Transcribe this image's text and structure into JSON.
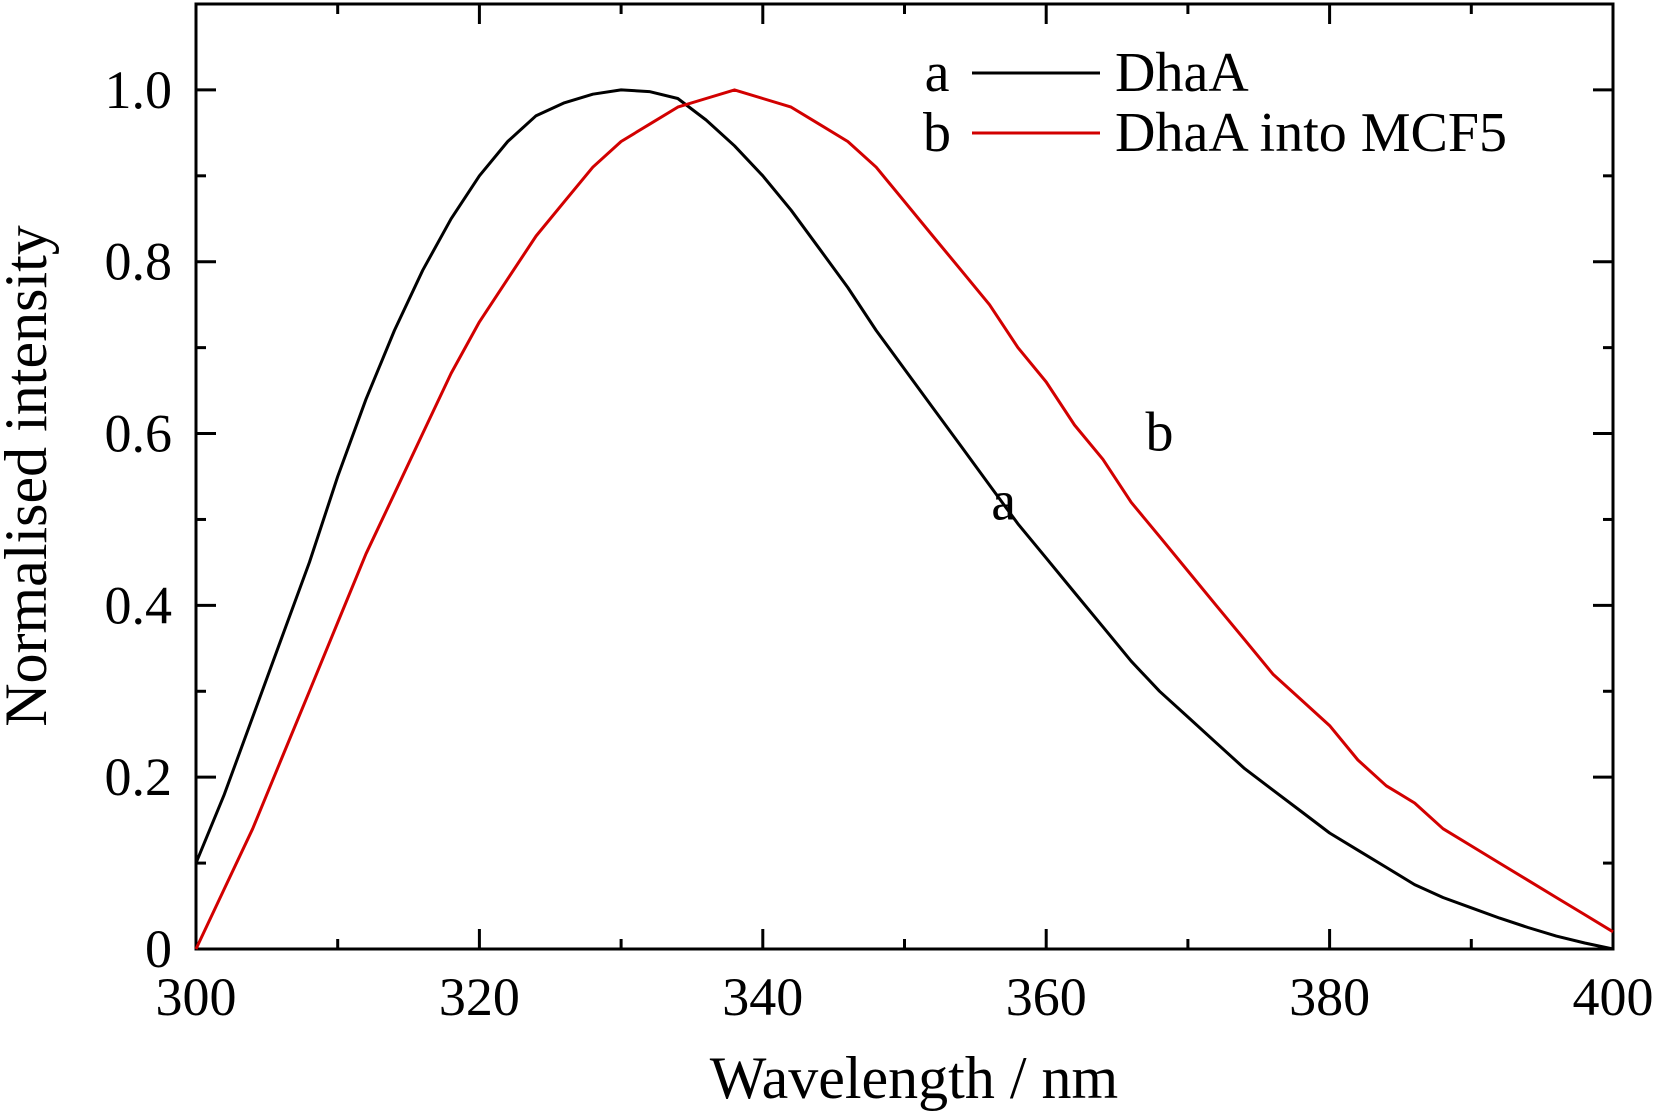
{
  "chart_data": {
    "type": "line",
    "xlabel": "Wavelength / nm",
    "ylabel": "Normalised intensity",
    "xlim": [
      300,
      400
    ],
    "ylim": [
      0,
      1.1
    ],
    "x_ticks": [
      300,
      320,
      340,
      360,
      380,
      400
    ],
    "x_tick_labels": [
      "300",
      "320",
      "340",
      "360",
      "380",
      "400"
    ],
    "x_minor_step": 10,
    "y_ticks": [
      0,
      0.2,
      0.4,
      0.6,
      0.8,
      1.0
    ],
    "y_tick_labels": [
      "0",
      "0.2",
      "0.4",
      "0.6",
      "0.8",
      "1.0"
    ],
    "y_minor_step": 0.1,
    "grid": false,
    "legend_position": "top-right",
    "series": [
      {
        "name": "DhaA",
        "letter": "a",
        "color": "#000000",
        "x": [
          300,
          302,
          304,
          306,
          308,
          310,
          312,
          314,
          316,
          318,
          320,
          322,
          324,
          326,
          328,
          330,
          332,
          334,
          336,
          338,
          340,
          342,
          344,
          346,
          348,
          350,
          352,
          354,
          356,
          358,
          360,
          362,
          364,
          366,
          368,
          370,
          372,
          374,
          376,
          378,
          380,
          382,
          384,
          386,
          388,
          390,
          392,
          394,
          396,
          398,
          400
        ],
        "y": [
          0.1,
          0.18,
          0.27,
          0.36,
          0.45,
          0.55,
          0.64,
          0.72,
          0.79,
          0.85,
          0.9,
          0.94,
          0.97,
          0.985,
          0.995,
          1.0,
          0.998,
          0.99,
          0.965,
          0.935,
          0.9,
          0.86,
          0.815,
          0.77,
          0.72,
          0.675,
          0.63,
          0.585,
          0.54,
          0.495,
          0.455,
          0.415,
          0.375,
          0.335,
          0.3,
          0.27,
          0.24,
          0.21,
          0.185,
          0.16,
          0.135,
          0.115,
          0.095,
          0.075,
          0.06,
          0.048,
          0.036,
          0.025,
          0.015,
          0.007,
          0.0
        ]
      },
      {
        "name": "DhaA into MCF5",
        "letter": "b",
        "color": "#d20000",
        "x": [
          300,
          302,
          304,
          306,
          308,
          310,
          312,
          314,
          316,
          318,
          320,
          322,
          324,
          326,
          328,
          330,
          332,
          334,
          336,
          338,
          340,
          342,
          344,
          346,
          348,
          350,
          352,
          354,
          356,
          358,
          360,
          362,
          364,
          366,
          368,
          370,
          372,
          374,
          376,
          378,
          380,
          382,
          384,
          386,
          388,
          390,
          392,
          394,
          396,
          398,
          400
        ],
        "y": [
          0.0,
          0.07,
          0.14,
          0.22,
          0.3,
          0.38,
          0.46,
          0.53,
          0.6,
          0.67,
          0.73,
          0.78,
          0.83,
          0.87,
          0.91,
          0.94,
          0.96,
          0.98,
          0.99,
          1.0,
          0.99,
          0.98,
          0.96,
          0.94,
          0.91,
          0.87,
          0.83,
          0.79,
          0.75,
          0.7,
          0.66,
          0.61,
          0.57,
          0.52,
          0.48,
          0.44,
          0.4,
          0.36,
          0.32,
          0.29,
          0.26,
          0.22,
          0.19,
          0.17,
          0.14,
          0.12,
          0.1,
          0.08,
          0.06,
          0.04,
          0.02
        ]
      }
    ],
    "legend": [
      {
        "letter": "a",
        "text": "DhaA",
        "color": "#000000"
      },
      {
        "letter": "b",
        "text": "DhaA into MCF5",
        "color": "#d20000"
      }
    ],
    "curve_labels": [
      {
        "text": "a",
        "x": 357,
        "y": 0.5
      },
      {
        "text": "b",
        "x": 368,
        "y": 0.58
      }
    ]
  }
}
